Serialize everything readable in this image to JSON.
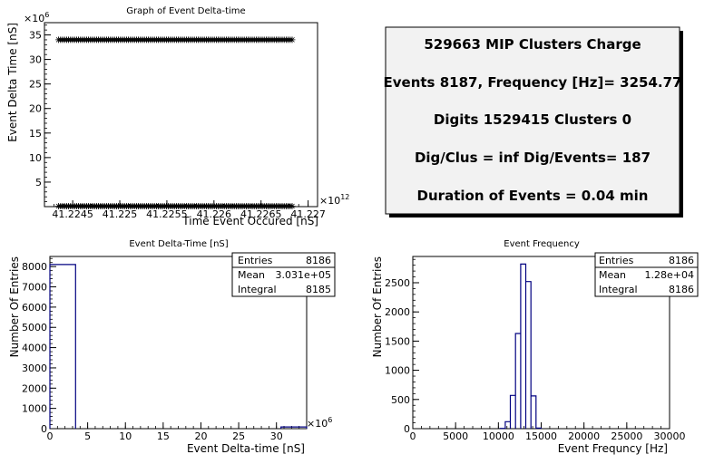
{
  "info_box": {
    "lines": [
      "529663 MIP Clusters Charge",
      "Events 8187, Frequency [Hz]= 3254.77",
      "Digits 1529415 Clusters 0",
      "Dig/Clus = inf Dig/Events= 187",
      "Duration of Events = 0.04 min"
    ]
  },
  "chart_data": [
    {
      "type": "scatter",
      "title": "Graph of Event Delta-time",
      "xlabel": "Time Event Occured [nS]",
      "ylabel": "Event Delta Time [nS]",
      "y_exponent": "×10",
      "y_exponent_power": "6",
      "x_exponent": "×10",
      "x_exponent_power": "12",
      "xlim": [
        41.2242,
        41.2271
      ],
      "ylim": [
        0,
        37.5
      ],
      "x_ticks": [
        "41.2245",
        "41.225",
        "41.2255",
        "41.226",
        "41.2265",
        "41.227"
      ],
      "y_ticks": [
        "5",
        "10",
        "15",
        "20",
        "25",
        "30",
        "35"
      ],
      "series": [
        {
          "x_range": [
            41.22435,
            41.22685
          ],
          "y": 34.0
        },
        {
          "x_range": [
            41.22435,
            41.22685
          ],
          "y": 0.1
        }
      ],
      "marker": "star",
      "grid": false
    },
    {
      "type": "bar",
      "title": "Event Delta-Time [nS]",
      "xlabel": "Event Delta-time [nS]",
      "ylabel": "Number Of Entries",
      "x_exponent": "×10",
      "x_exponent_power": "6",
      "xlim": [
        0,
        34
      ],
      "ylim": [
        0,
        8500
      ],
      "x_ticks": [
        "0",
        "5",
        "10",
        "15",
        "20",
        "25",
        "30"
      ],
      "y_ticks": [
        "0",
        "1000",
        "2000",
        "3000",
        "4000",
        "5000",
        "6000",
        "7000",
        "8000"
      ],
      "bins": [
        {
          "lo": 0,
          "hi": 3.4,
          "count": 8100
        },
        {
          "lo": 30.6,
          "hi": 34,
          "count": 85
        }
      ],
      "stats": [
        {
          "label": "Entries",
          "value": "8186"
        },
        {
          "label": "Mean",
          "value": "3.031e+05"
        },
        {
          "label": "Integral",
          "value": "8185"
        }
      ],
      "grid": false
    },
    {
      "type": "bar",
      "title": "Event Frequency",
      "xlabel": "Event Frequncy [Hz]",
      "ylabel": "Number Of Entries",
      "xlim": [
        0,
        30000
      ],
      "ylim": [
        0,
        2950
      ],
      "x_ticks": [
        "0",
        "5000",
        "10000",
        "15000",
        "20000",
        "25000",
        "30000"
      ],
      "y_ticks": [
        "0",
        "500",
        "1000",
        "1500",
        "2000",
        "2500"
      ],
      "bins": [
        {
          "lo": 10200,
          "hi": 10800,
          "count": 5
        },
        {
          "lo": 10800,
          "hi": 11400,
          "count": 120
        },
        {
          "lo": 11400,
          "hi": 12000,
          "count": 570
        },
        {
          "lo": 12000,
          "hi": 12600,
          "count": 1630
        },
        {
          "lo": 12600,
          "hi": 13200,
          "count": 2820
        },
        {
          "lo": 13200,
          "hi": 13800,
          "count": 2520
        },
        {
          "lo": 13800,
          "hi": 14400,
          "count": 560
        },
        {
          "lo": 14400,
          "hi": 15000,
          "count": 10
        }
      ],
      "stats": [
        {
          "label": "Entries",
          "value": "8186"
        },
        {
          "label": "Mean",
          "value": "1.28e+04"
        },
        {
          "label": "Integral",
          "value": "8186"
        }
      ],
      "grid": false
    }
  ],
  "colors": {
    "histogram_line": "#000080",
    "axis": "#000000",
    "info_box_bg": "#f2f2f2"
  }
}
